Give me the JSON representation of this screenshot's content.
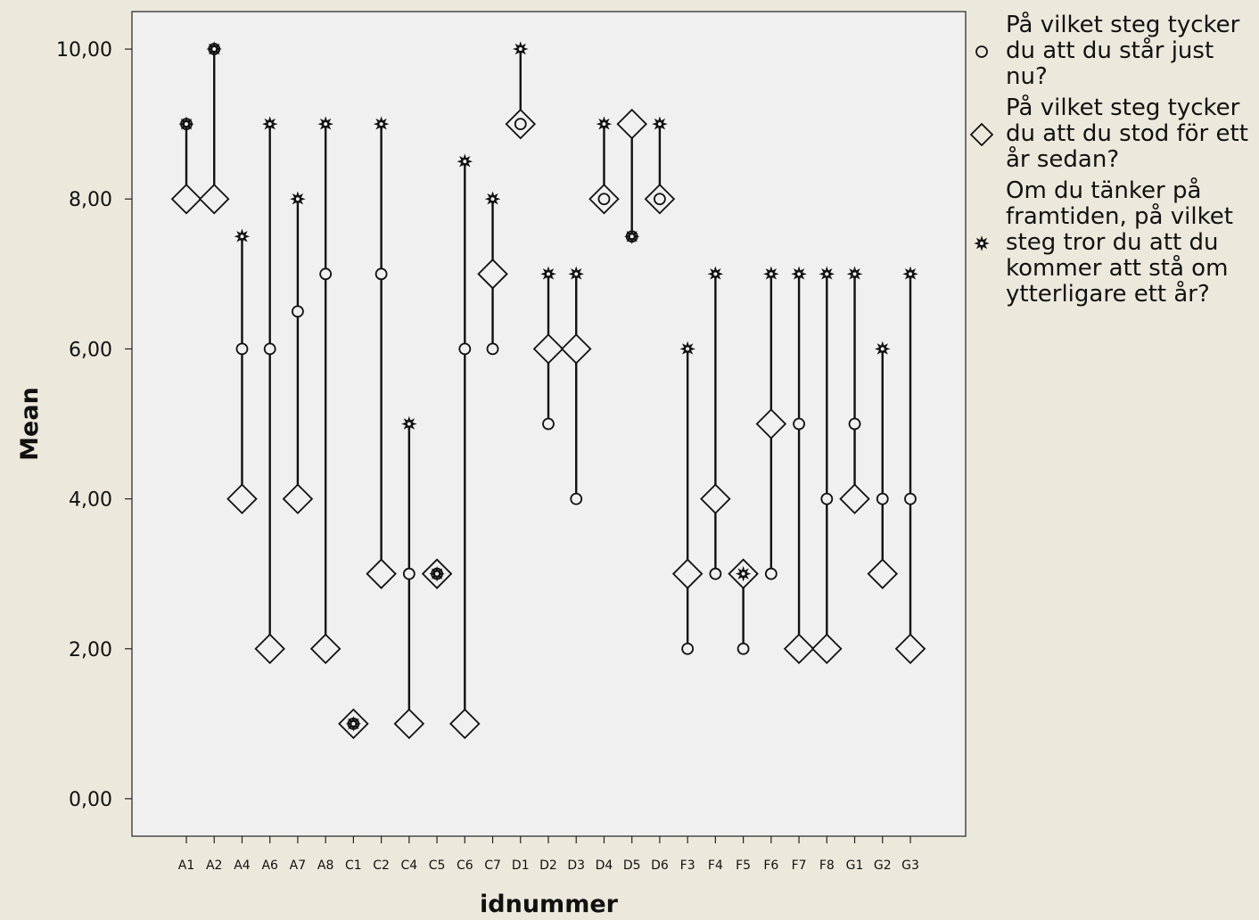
{
  "chart_data": {
    "type": "dropline",
    "xlabel": "idnummer",
    "ylabel": "Mean",
    "ylim": [
      -0.5,
      10.5
    ],
    "yticks": [
      0,
      2,
      4,
      6,
      8,
      10
    ],
    "yticklabels": [
      "0,00",
      "2,00",
      "4,00",
      "6,00",
      "8,00",
      "10,00"
    ],
    "grid": false,
    "legend_position": "right",
    "colors": {
      "plot_bg": "#f0f0f0",
      "outer_bg": "#ece9dc",
      "marker": "#111111"
    },
    "categories": [
      "A1",
      "A2",
      "A4",
      "A6",
      "A7",
      "A8",
      "C1",
      "C2",
      "C4",
      "C5",
      "C6",
      "C7",
      "D1",
      "D2",
      "D3",
      "D4",
      "D5",
      "D6",
      "F3",
      "F4",
      "F5",
      "F6",
      "F7",
      "F8",
      "G1",
      "G2",
      "G3"
    ],
    "series": [
      {
        "name": "På vilket steg tycker du att du står just nu?",
        "marker": "circle",
        "values": [
          9,
          10,
          6,
          6,
          6.5,
          7,
          1,
          7,
          3,
          3,
          6,
          6,
          9,
          5,
          4,
          8,
          7.5,
          8,
          2,
          3,
          2,
          3,
          5,
          4,
          5,
          4,
          4
        ]
      },
      {
        "name": "På vilket steg tycker du att du stod för ett år sedan?",
        "marker": "diamond",
        "values": [
          8,
          8,
          4,
          2,
          4,
          2,
          1,
          3,
          1,
          3,
          1,
          7,
          9,
          6,
          6,
          8,
          9,
          8,
          3,
          4,
          3,
          5,
          2,
          2,
          4,
          3,
          2
        ]
      },
      {
        "name": "Om du tänker på framtiden, på vilket steg tror du att du kommer att stå om ytterligare ett år?",
        "marker": "star",
        "values": [
          9,
          10,
          7.5,
          9,
          8,
          9,
          1,
          9,
          5,
          3,
          8.5,
          8,
          10,
          7,
          7,
          9,
          7.5,
          9,
          6,
          7,
          3,
          7,
          7,
          7,
          7,
          6,
          7
        ]
      }
    ]
  },
  "legend": {
    "items": [
      "På vilket steg tycker du att du står just nu?",
      "På vilket steg tycker du att du stod för ett år sedan?",
      "Om du tänker på framtiden, på vilket steg tror du att du kommer att stå om ytterligare ett år?"
    ]
  }
}
